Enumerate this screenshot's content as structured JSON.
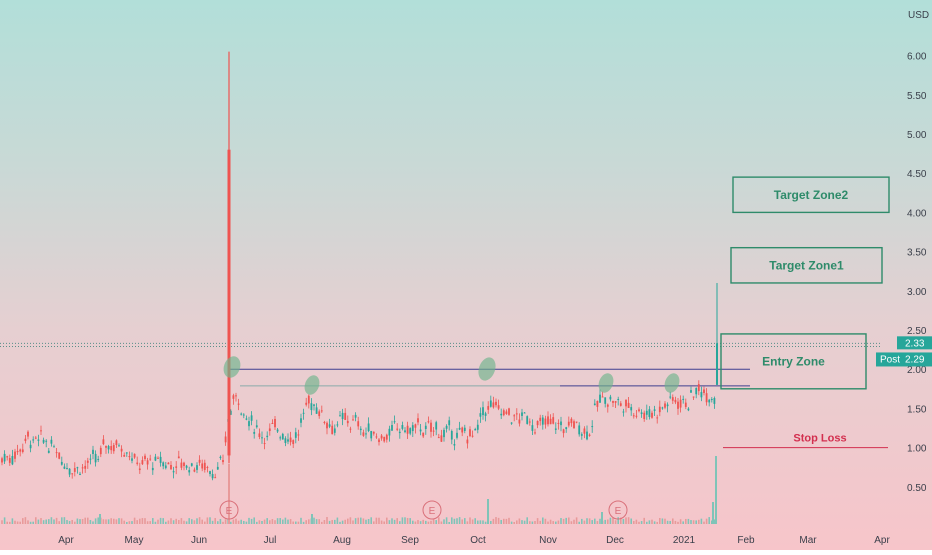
{
  "chart_data": {
    "type": "candlestick",
    "currency": "USD",
    "y_ticks": [
      "6.00",
      "5.50",
      "5.00",
      "4.50",
      "4.00",
      "3.50",
      "3.00",
      "2.50",
      "2.00",
      "1.50",
      "1.00",
      "0.50"
    ],
    "ylim": [
      0.0,
      6.5
    ],
    "x_ticks": [
      "Apr",
      "May",
      "Jun",
      "Jul",
      "Aug",
      "Sep",
      "Oct",
      "Nov",
      "Dec",
      "2021",
      "Feb",
      "Mar",
      "Apr"
    ],
    "last_price_label": "2.33",
    "post_label": "Post",
    "post_price": "2.29",
    "earnings_marker": "E",
    "zones": [
      {
        "label": "Target Zone2",
        "low": 4.0,
        "high": 4.45
      },
      {
        "label": "Target Zone1",
        "low": 3.1,
        "high": 3.55
      },
      {
        "label": "Entry Zone",
        "low": 1.75,
        "high": 2.45
      },
      {
        "label": "Stop Loss",
        "level": 1.0
      }
    ],
    "neckline_levels": [
      2.0,
      1.8
    ],
    "spike": {
      "month": "Jun",
      "high": 6.05,
      "body_top": 4.8
    },
    "colors": {
      "up": "#26a69a",
      "down": "#ef5350",
      "zone": "#2e8b6a",
      "stop": "#d32f4f",
      "line": "#3f3f8f",
      "badge": "#26a69a"
    }
  }
}
